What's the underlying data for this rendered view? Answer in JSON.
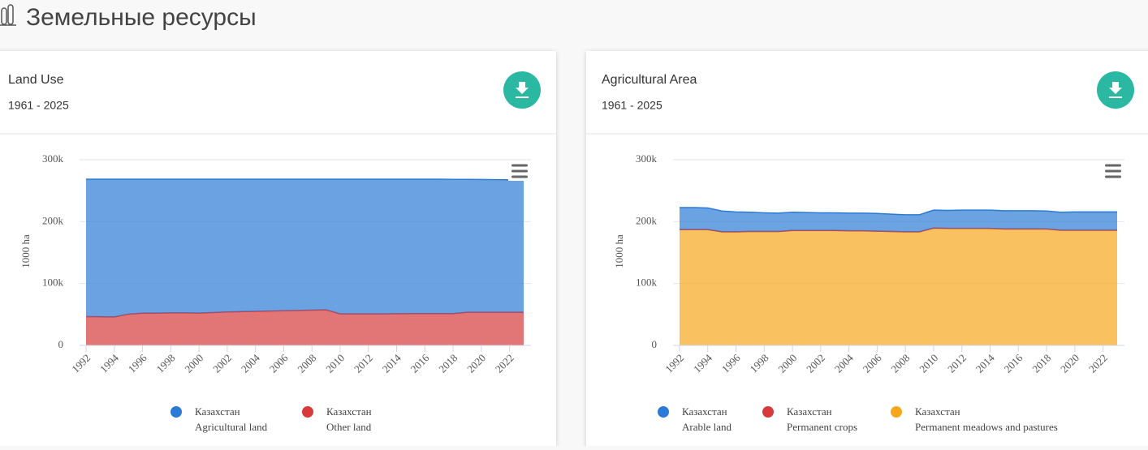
{
  "page_title": "Земельные ресурсы",
  "chart_data": [
    {
      "type": "area",
      "stacked": true,
      "title": "Land Use",
      "subtitle": "1961 - 2025",
      "y_label": "1000 ha",
      "x": [
        1992,
        1993,
        1994,
        1995,
        1996,
        1997,
        1998,
        1999,
        2000,
        2001,
        2002,
        2003,
        2004,
        2005,
        2006,
        2007,
        2008,
        2009,
        2010,
        2011,
        2012,
        2013,
        2014,
        2015,
        2016,
        2017,
        2018,
        2019,
        2020,
        2021,
        2022,
        2023
      ],
      "xlim": [
        1992,
        2023
      ],
      "xticks": [
        1992,
        1994,
        1996,
        1998,
        2000,
        2002,
        2004,
        2006,
        2008,
        2010,
        2012,
        2014,
        2016,
        2018,
        2020,
        2022
      ],
      "ylim": [
        0,
        300000
      ],
      "yticks": [
        0,
        {
          "value": 100000,
          "label": "100k"
        },
        {
          "value": 200000,
          "label": "200k"
        },
        {
          "value": 300000,
          "label": "300k"
        }
      ],
      "grid": true,
      "series": [
        {
          "country": "Казахстан",
          "name": "Agricultural land",
          "color": "#2b7bd6",
          "values": [
            222000,
            222200,
            222500,
            218000,
            216500,
            216500,
            216000,
            216000,
            216200,
            215500,
            214500,
            214000,
            213500,
            213000,
            212500,
            212000,
            211500,
            211000,
            217500,
            217500,
            217500,
            217500,
            217200,
            217000,
            217000,
            217000,
            216800,
            214700,
            214500,
            214200,
            214000,
            214000
          ]
        },
        {
          "country": "Казахстан",
          "name": "Other land",
          "color": "#d63a3a",
          "values": [
            46500,
            46300,
            46000,
            50500,
            52000,
            52000,
            52500,
            52500,
            52300,
            53000,
            54000,
            54500,
            55000,
            55500,
            56000,
            56500,
            57000,
            57500,
            51000,
            51000,
            51000,
            51000,
            51300,
            51500,
            51500,
            51500,
            51500,
            53500,
            53500,
            53500,
            53500,
            53500
          ]
        }
      ]
    },
    {
      "type": "area",
      "stacked": true,
      "title": "Agricultural Area",
      "subtitle": "1961 - 2025",
      "y_label": "1000 ha",
      "x": [
        1992,
        1993,
        1994,
        1995,
        1996,
        1997,
        1998,
        1999,
        2000,
        2001,
        2002,
        2003,
        2004,
        2005,
        2006,
        2007,
        2008,
        2009,
        2010,
        2011,
        2012,
        2013,
        2014,
        2015,
        2016,
        2017,
        2018,
        2019,
        2020,
        2021,
        2022,
        2023
      ],
      "xlim": [
        1992,
        2023
      ],
      "xticks": [
        1992,
        1994,
        1996,
        1998,
        2000,
        2002,
        2004,
        2006,
        2008,
        2010,
        2012,
        2014,
        2016,
        2018,
        2020,
        2022
      ],
      "ylim": [
        0,
        300000
      ],
      "yticks": [
        0,
        {
          "value": 100000,
          "label": "100k"
        },
        {
          "value": 200000,
          "label": "200k"
        },
        {
          "value": 300000,
          "label": "300k"
        }
      ],
      "grid": true,
      "series": [
        {
          "country": "Казахстан",
          "name": "Arable land",
          "color": "#2b7bd6",
          "values": [
            35500,
            35500,
            35000,
            33500,
            32000,
            31000,
            30000,
            29500,
            29500,
            29000,
            28500,
            28500,
            28500,
            28500,
            28500,
            28000,
            27500,
            27500,
            29000,
            29000,
            29500,
            29500,
            29500,
            29500,
            29500,
            29500,
            29000,
            29000,
            29500,
            29500,
            29500,
            29500
          ]
        },
        {
          "country": "Казахстан",
          "name": "Permanent crops",
          "color": "#d63a3a",
          "values": [
            130,
            130,
            130,
            130,
            130,
            130,
            130,
            130,
            130,
            130,
            130,
            130,
            130,
            130,
            130,
            130,
            130,
            130,
            130,
            130,
            130,
            130,
            130,
            130,
            130,
            130,
            130,
            130,
            130,
            130,
            130,
            130
          ]
        },
        {
          "country": "Казахстан",
          "name": "Permanent meadows and pastures",
          "color": "#f8a61e",
          "values": [
            187000,
            187000,
            187000,
            183500,
            183500,
            184000,
            184000,
            184000,
            185500,
            185500,
            185500,
            185500,
            185000,
            185000,
            184500,
            184000,
            183500,
            183500,
            189500,
            189000,
            189000,
            189000,
            189000,
            188000,
            188000,
            188000,
            188000,
            186000,
            186000,
            186000,
            186000,
            186000
          ]
        }
      ]
    }
  ]
}
